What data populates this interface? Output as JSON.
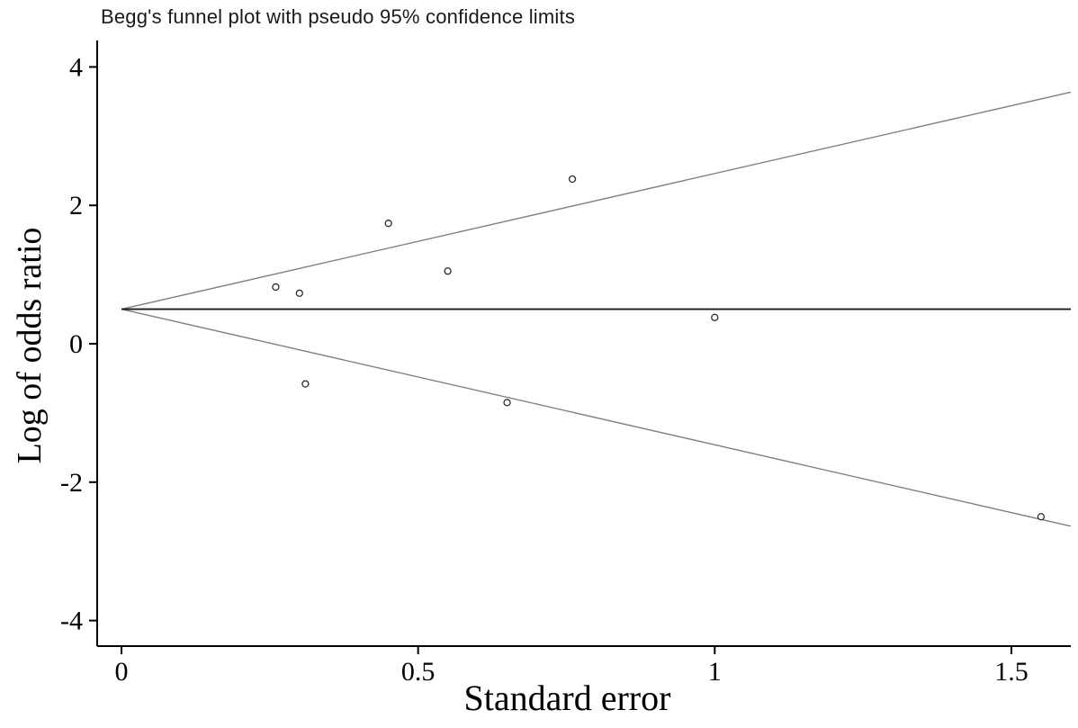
{
  "chart_data": {
    "type": "scatter",
    "title": "Begg's funnel plot with pseudo 95% confidence limits",
    "xlabel": "Standard error",
    "ylabel": "Log of odds ratio",
    "xlim": [
      0,
      1.6
    ],
    "ylim": [
      -4.4,
      4.4
    ],
    "grid": false,
    "legend": "none",
    "x_ticks": [
      {
        "value": 0,
        "label": "0"
      },
      {
        "value": 0.5,
        "label": "0.5"
      },
      {
        "value": 1,
        "label": "1"
      },
      {
        "value": 1.5,
        "label": "1.5"
      }
    ],
    "y_ticks": [
      {
        "value": -4,
        "label": "-4"
      },
      {
        "value": -2,
        "label": "-2"
      },
      {
        "value": 0,
        "label": "0"
      },
      {
        "value": 2,
        "label": "2"
      },
      {
        "value": 4,
        "label": "4"
      }
    ],
    "pooled_log_or": 0.5,
    "ci_multiplier": 1.96,
    "funnel_se_max": 1.6,
    "series": [
      {
        "name": "studies",
        "marker": "open-circle",
        "points": [
          {
            "se": 0.26,
            "log_or": 0.82
          },
          {
            "se": 0.3,
            "log_or": 0.73
          },
          {
            "se": 0.31,
            "log_or": -0.58
          },
          {
            "se": 0.45,
            "log_or": 1.74
          },
          {
            "se": 0.55,
            "log_or": 1.05
          },
          {
            "se": 0.65,
            "log_or": -0.85
          },
          {
            "se": 0.76,
            "log_or": 2.38
          },
          {
            "se": 1.0,
            "log_or": 0.38
          },
          {
            "se": 1.55,
            "log_or": -2.5
          }
        ]
      }
    ],
    "lines": {
      "center": {
        "y": 0.5
      },
      "upper_ci": {
        "from_se": 0,
        "to_se": 1.6
      },
      "lower_ci": {
        "from_se": 0,
        "to_se": 1.6
      }
    }
  },
  "colors": {
    "background": "#ffffff",
    "axis": "#000000",
    "tick_text": "#000000",
    "ci_line": "#808080",
    "center_line": "#1a1a1a",
    "marker_stroke": "#2b2b2b",
    "marker_fill": "#ffffff"
  }
}
